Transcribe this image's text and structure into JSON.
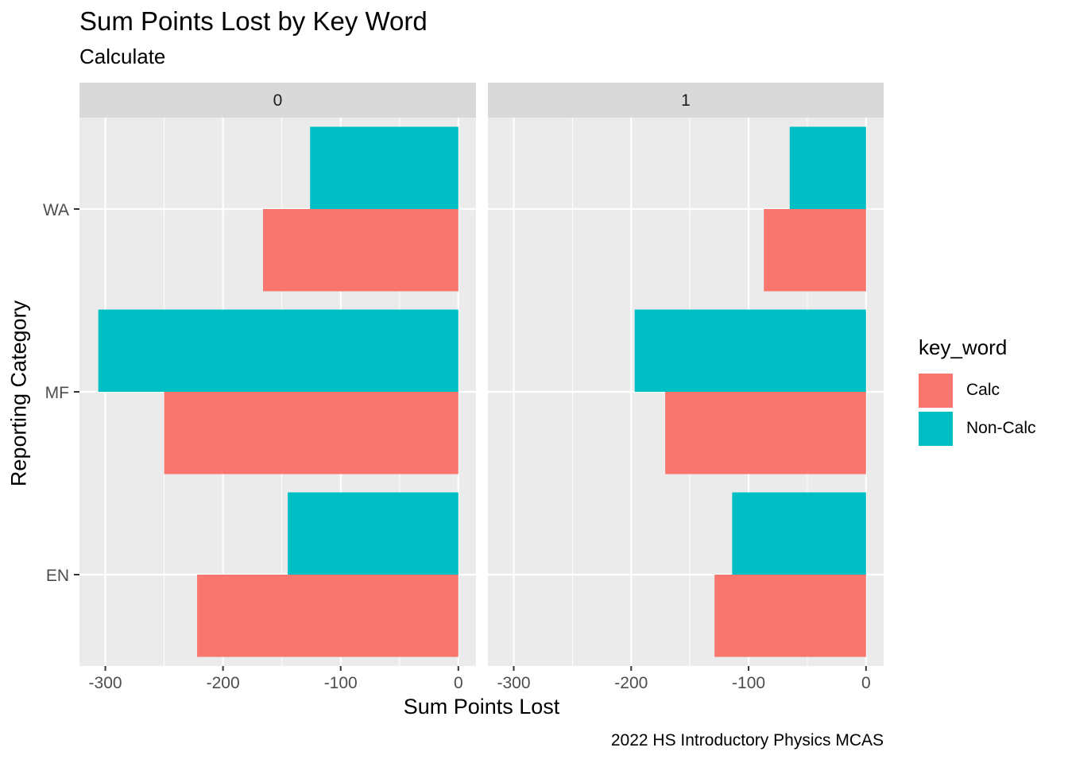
{
  "title": "Sum Points Lost by Key Word",
  "subtitle": "Calculate",
  "caption": "2022 HS Introductory Physics MCAS",
  "colors": {
    "calc": "#F8766D",
    "non_calc": "#00BFC4"
  },
  "chart_data": {
    "type": "bar",
    "orientation": "horizontal",
    "title": "Sum Points Lost by Key Word",
    "subtitle": "Calculate",
    "caption": "2022 HS Introductory Physics MCAS",
    "xlabel": "Sum Points Lost",
    "ylabel": "Reporting Category",
    "xlim": [
      -322,
      15
    ],
    "x_ticks": [
      -300,
      -200,
      -100,
      0
    ],
    "x_tick_labels": [
      "-300",
      "-200",
      "-100",
      "0"
    ],
    "categories": [
      "EN",
      "MF",
      "WA"
    ],
    "legend": {
      "title": "key_word",
      "position": "right",
      "entries": [
        "Calc",
        "Non-Calc"
      ]
    },
    "grid": true,
    "facets": [
      {
        "label": "0",
        "series": [
          {
            "name": "Calc",
            "color": "#F8766D",
            "values": [
              -222,
              -250,
              -166
            ]
          },
          {
            "name": "Non-Calc",
            "color": "#00BFC4",
            "values": [
              -145,
              -306,
              -126
            ]
          }
        ]
      },
      {
        "label": "1",
        "series": [
          {
            "name": "Calc",
            "color": "#F8766D",
            "values": [
              -129,
              -171,
              -87
            ]
          },
          {
            "name": "Non-Calc",
            "color": "#00BFC4",
            "values": [
              -114,
              -197,
              -65
            ]
          }
        ]
      }
    ]
  }
}
